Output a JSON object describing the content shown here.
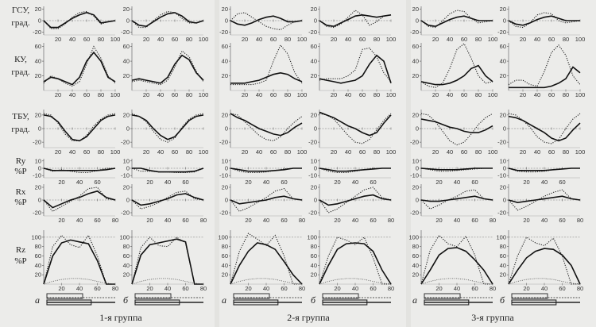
{
  "chart_data": {
    "type": "line",
    "x": [
      0,
      10,
      20,
      30,
      40,
      50,
      60,
      70,
      80,
      90,
      100
    ],
    "row_labels": [
      [
        "ГСУ,",
        "град."
      ],
      [
        "КУ,",
        "град."
      ],
      [
        "ТБУ,",
        "град."
      ],
      [
        "Ry",
        "%P"
      ],
      [
        "Rx",
        "%P"
      ],
      [
        "Rz",
        "%P"
      ]
    ],
    "groups": [
      "1-я группа",
      "2-я группа",
      "3-я группа"
    ],
    "subpanel_labels": [
      "а",
      "б",
      "а",
      "б",
      "а",
      "б"
    ],
    "rows": [
      {
        "name": "ГСУ",
        "yticks": [
          20,
          0,
          -20
        ],
        "yrange": [
          -25,
          25
        ],
        "xtick_values": [
          20,
          40,
          60,
          80,
          100
        ],
        "columns": [
          {
            "solid": [
              0,
              -12,
              -12,
              -4,
              4,
              10,
              14,
              10,
              -4,
              -2,
              0
            ],
            "dotted": [
              0,
              -14,
              -14,
              -6,
              6,
              14,
              16,
              8,
              -6,
              -2,
              0
            ]
          },
          {
            "solid": [
              0,
              -8,
              -10,
              -2,
              6,
              12,
              14,
              8,
              -2,
              -4,
              0
            ],
            "dotted": [
              0,
              -12,
              -12,
              0,
              10,
              16,
              14,
              4,
              -4,
              -4,
              0
            ]
          },
          {
            "solid": [
              0,
              -6,
              -8,
              -4,
              2,
              6,
              8,
              4,
              -2,
              -2,
              0
            ],
            "dotted": [
              0,
              12,
              14,
              6,
              -2,
              -10,
              -14,
              -16,
              -8,
              -2,
              0
            ]
          },
          {
            "solid": [
              0,
              -8,
              -10,
              -4,
              2,
              8,
              10,
              8,
              6,
              8,
              10
            ],
            "dotted": [
              0,
              -10,
              -12,
              -6,
              6,
              18,
              10,
              -8,
              -2,
              8,
              10
            ]
          },
          {
            "solid": [
              0,
              -8,
              -10,
              -4,
              2,
              6,
              8,
              4,
              0,
              0,
              0
            ],
            "dotted": [
              0,
              -10,
              -12,
              0,
              12,
              18,
              16,
              4,
              -4,
              -2,
              0
            ]
          },
          {
            "solid": [
              0,
              -6,
              -8,
              -4,
              2,
              6,
              8,
              4,
              0,
              0,
              0
            ],
            "dotted": [
              0,
              -10,
              -12,
              -4,
              10,
              14,
              12,
              0,
              -4,
              -2,
              0
            ]
          }
        ]
      },
      {
        "name": "КУ",
        "yticks": [
          60,
          40,
          20
        ],
        "yrange": [
          0,
          65
        ],
        "xtick_values": [
          20,
          40,
          60,
          80,
          100
        ],
        "columns": [
          {
            "solid": [
              12,
              18,
              16,
              12,
              8,
              18,
              40,
              52,
              40,
              18,
              12
            ],
            "dotted": [
              10,
              20,
              16,
              10,
              6,
              12,
              36,
              60,
              44,
              20,
              10
            ]
          },
          {
            "solid": [
              14,
              16,
              14,
              12,
              10,
              18,
              36,
              48,
              42,
              24,
              14
            ],
            "dotted": [
              12,
              14,
              12,
              10,
              8,
              14,
              32,
              54,
              46,
              26,
              12
            ]
          },
          {
            "solid": [
              10,
              10,
              10,
              12,
              14,
              18,
              22,
              24,
              22,
              16,
              12
            ],
            "dotted": [
              8,
              8,
              8,
              8,
              10,
              14,
              40,
              62,
              50,
              24,
              10
            ]
          },
          {
            "solid": [
              16,
              14,
              12,
              10,
              12,
              14,
              20,
              36,
              48,
              40,
              10
            ],
            "dotted": [
              14,
              16,
              16,
              16,
              20,
              28,
              56,
              58,
              46,
              24,
              12
            ]
          },
          {
            "solid": [
              12,
              10,
              8,
              8,
              10,
              14,
              20,
              30,
              34,
              20,
              12
            ],
            "dotted": [
              12,
              6,
              4,
              10,
              30,
              56,
              64,
              44,
              20,
              10,
              12
            ]
          },
          {
            "solid": [
              4,
              4,
              4,
              4,
              4,
              4,
              6,
              10,
              16,
              32,
              24
            ],
            "dotted": [
              8,
              14,
              14,
              8,
              6,
              26,
              52,
              62,
              48,
              20,
              8
            ]
          }
        ]
      },
      {
        "name": "ТБУ",
        "yticks": [
          20,
          0,
          -20
        ],
        "yrange": [
          -28,
          28
        ],
        "xtick_values": [
          20,
          40,
          60,
          80,
          100
        ],
        "columns": [
          {
            "solid": [
              20,
              18,
              10,
              -4,
              -16,
              -18,
              -12,
              0,
              12,
              18,
              20
            ],
            "dotted": [
              22,
              20,
              8,
              -8,
              -18,
              -18,
              -10,
              4,
              14,
              20,
              22
            ]
          },
          {
            "solid": [
              20,
              18,
              12,
              0,
              -10,
              -16,
              -12,
              0,
              12,
              18,
              20
            ],
            "dotted": [
              22,
              18,
              10,
              -4,
              -16,
              -20,
              -14,
              2,
              14,
              20,
              22
            ]
          },
          {
            "solid": [
              22,
              16,
              12,
              6,
              0,
              -4,
              -8,
              -10,
              -6,
              2,
              8
            ],
            "dotted": [
              22,
              20,
              10,
              0,
              -10,
              -16,
              -18,
              -12,
              0,
              10,
              18
            ]
          },
          {
            "solid": [
              24,
              20,
              16,
              10,
              4,
              0,
              -6,
              -10,
              -6,
              8,
              20
            ],
            "dotted": [
              22,
              20,
              14,
              2,
              -10,
              -20,
              -22,
              -16,
              -2,
              12,
              22
            ]
          },
          {
            "solid": [
              14,
              12,
              10,
              6,
              2,
              0,
              -4,
              -6,
              -6,
              -2,
              4
            ],
            "dotted": [
              22,
              20,
              10,
              -4,
              -18,
              -24,
              -20,
              -8,
              6,
              16,
              22
            ]
          },
          {
            "solid": [
              18,
              16,
              12,
              6,
              0,
              -6,
              -14,
              -18,
              -14,
              -2,
              8
            ],
            "dotted": [
              22,
              20,
              12,
              2,
              -12,
              -20,
              -22,
              -16,
              0,
              14,
              22
            ]
          }
        ]
      },
      {
        "name": "Ry",
        "yticks": [
          10,
          0,
          -10
        ],
        "yrange": [
          -13,
          13
        ],
        "xtick_values": [
          20,
          40,
          60
        ],
        "columns": [
          {
            "solid": [
              0,
              -3,
              -3,
              -3,
              -3,
              -3,
              -3,
              -2,
              0
            ],
            "dotted": [
              0,
              -4,
              -2,
              -4,
              -6,
              -6,
              -3,
              0,
              0
            ]
          },
          {
            "solid": [
              0,
              0,
              -3,
              -5,
              -5,
              -5,
              -5,
              -4,
              0
            ],
            "dotted": [
              0,
              -4,
              -4,
              -5,
              -5,
              -6,
              -6,
              -5,
              0
            ]
          },
          {
            "solid": [
              0,
              -2,
              -4,
              -4,
              -4,
              -3,
              -2,
              0,
              0
            ],
            "dotted": [
              0,
              -4,
              -6,
              -6,
              -5,
              -3,
              -1,
              0,
              0
            ]
          },
          {
            "solid": [
              0,
              -2,
              -4,
              -4,
              -3,
              -2,
              -1,
              0,
              0
            ],
            "dotted": [
              0,
              -4,
              -6,
              -6,
              -4,
              -2,
              0,
              0,
              0
            ]
          },
          {
            "solid": [
              0,
              -1,
              -2,
              -2,
              -2,
              -1,
              0,
              0,
              0
            ],
            "dotted": [
              0,
              -2,
              -4,
              -4,
              -3,
              -2,
              -1,
              0,
              0
            ]
          },
          {
            "solid": [
              0,
              -3,
              -3,
              -3,
              -3,
              -2,
              -1,
              0,
              0
            ],
            "dotted": [
              0,
              -4,
              -5,
              -5,
              -4,
              -2,
              -1,
              0,
              0
            ]
          }
        ]
      },
      {
        "name": "Rx",
        "yticks": [
          20,
          0,
          -20
        ],
        "yrange": [
          -25,
          25
        ],
        "xtick_values": [
          20,
          40,
          60,
          80
        ],
        "columns": [
          {
            "solid": [
              0,
              -12,
              -6,
              0,
              4,
              10,
              14,
              4,
              0
            ],
            "dotted": [
              0,
              -18,
              -10,
              -2,
              6,
              18,
              20,
              2,
              0
            ]
          },
          {
            "solid": [
              0,
              -8,
              -6,
              -2,
              2,
              8,
              10,
              4,
              0
            ],
            "dotted": [
              0,
              -14,
              -10,
              -4,
              4,
              12,
              14,
              2,
              0
            ]
          },
          {
            "solid": [
              0,
              -6,
              -4,
              -2,
              0,
              4,
              6,
              2,
              0
            ],
            "dotted": [
              0,
              -18,
              -12,
              -4,
              4,
              14,
              18,
              2,
              0
            ]
          },
          {
            "solid": [
              0,
              -8,
              -6,
              -2,
              2,
              6,
              8,
              2,
              0
            ],
            "dotted": [
              0,
              -20,
              -14,
              -4,
              6,
              16,
              20,
              4,
              0
            ]
          },
          {
            "solid": [
              0,
              -2,
              -2,
              0,
              2,
              4,
              6,
              2,
              0
            ],
            "dotted": [
              0,
              -14,
              -8,
              0,
              6,
              14,
              16,
              2,
              0
            ]
          },
          {
            "solid": [
              0,
              -4,
              -2,
              0,
              2,
              4,
              6,
              2,
              0
            ],
            "dotted": [
              0,
              -16,
              -10,
              -2,
              6,
              12,
              16,
              2,
              0
            ]
          }
        ]
      },
      {
        "name": "Rz",
        "yticks": [
          100,
          80,
          60,
          40,
          20
        ],
        "yrange": [
          0,
          115
        ],
        "xtick_values": [
          20,
          40,
          60,
          80
        ],
        "columns": [
          {
            "solid": [
              0,
              60,
              88,
              94,
              90,
              86,
              50,
              0,
              0
            ],
            "dotted": [
              0,
              80,
              104,
              84,
              78,
              104,
              60,
              0,
              0
            ]
          },
          {
            "solid": [
              0,
              62,
              84,
              88,
              92,
              96,
              90,
              0,
              0
            ],
            "dotted": [
              0,
              78,
              100,
              82,
              80,
              100,
              88,
              0,
              0
            ]
          },
          {
            "solid": [
              0,
              40,
              70,
              88,
              84,
              74,
              48,
              20,
              0
            ],
            "dotted": [
              0,
              70,
              108,
              96,
              82,
              104,
              60,
              0,
              0
            ]
          },
          {
            "solid": [
              0,
              40,
              74,
              86,
              88,
              86,
              70,
              30,
              0
            ],
            "dotted": [
              0,
              60,
              100,
              94,
              84,
              100,
              56,
              0,
              0
            ]
          },
          {
            "solid": [
              0,
              30,
              62,
              76,
              78,
              70,
              52,
              30,
              0
            ],
            "dotted": [
              0,
              72,
              104,
              86,
              80,
              102,
              62,
              0,
              0
            ]
          },
          {
            "solid": [
              0,
              30,
              56,
              70,
              76,
              74,
              62,
              40,
              0
            ],
            "dotted": [
              0,
              60,
              100,
              88,
              82,
              98,
              60,
              0,
              0
            ]
          }
        ]
      }
    ]
  }
}
